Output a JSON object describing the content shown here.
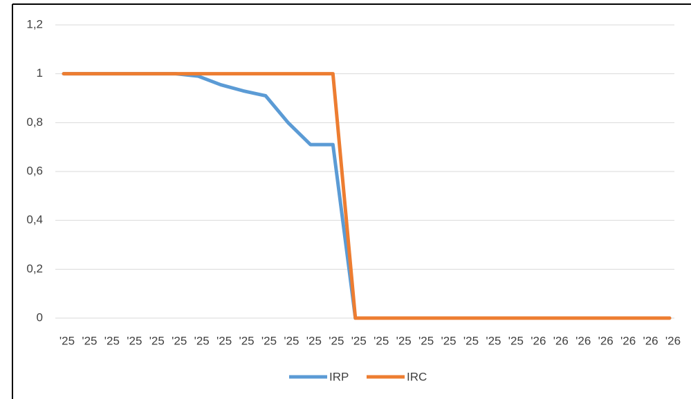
{
  "chart_data": {
    "type": "line",
    "categories": [
      "'25",
      "'25",
      "'25",
      "'25",
      "'25",
      "'25",
      "'25",
      "'25",
      "'25",
      "'25",
      "'25",
      "'25",
      "'25",
      "'25",
      "'25",
      "'25",
      "'25",
      "'25",
      "'25",
      "'25",
      "'25",
      "'26",
      "'26",
      "'26",
      "'26",
      "'26",
      "'26",
      "'26"
    ],
    "series": [
      {
        "name": "IRP",
        "color": "#5b9bd5",
        "values": [
          1,
          1,
          1,
          1,
          1,
          1,
          0.99,
          0.955,
          0.93,
          0.91,
          0.8,
          0.71,
          0.71,
          0,
          0,
          0,
          0,
          0,
          0,
          0,
          0,
          0,
          0,
          0,
          0,
          0,
          0,
          0
        ]
      },
      {
        "name": "IRC",
        "color": "#ed7d31",
        "values": [
          1,
          1,
          1,
          1,
          1,
          1,
          1,
          1,
          1,
          1,
          1,
          1,
          1,
          0,
          0,
          0,
          0,
          0,
          0,
          0,
          0,
          0,
          0,
          0,
          0,
          0,
          0,
          0
        ]
      }
    ],
    "ylim": [
      0,
      1.2
    ],
    "yticks": [
      0,
      {
        "value": 0.2,
        "label": "0,2"
      },
      {
        "value": 0.4,
        "label": "0,4"
      },
      {
        "value": 0.6,
        "label": "0,6"
      },
      {
        "value": 0.8,
        "label": "0,8"
      },
      1,
      {
        "value": 1.2,
        "label": "1,2"
      }
    ],
    "grid": true,
    "legend": "bottom"
  }
}
